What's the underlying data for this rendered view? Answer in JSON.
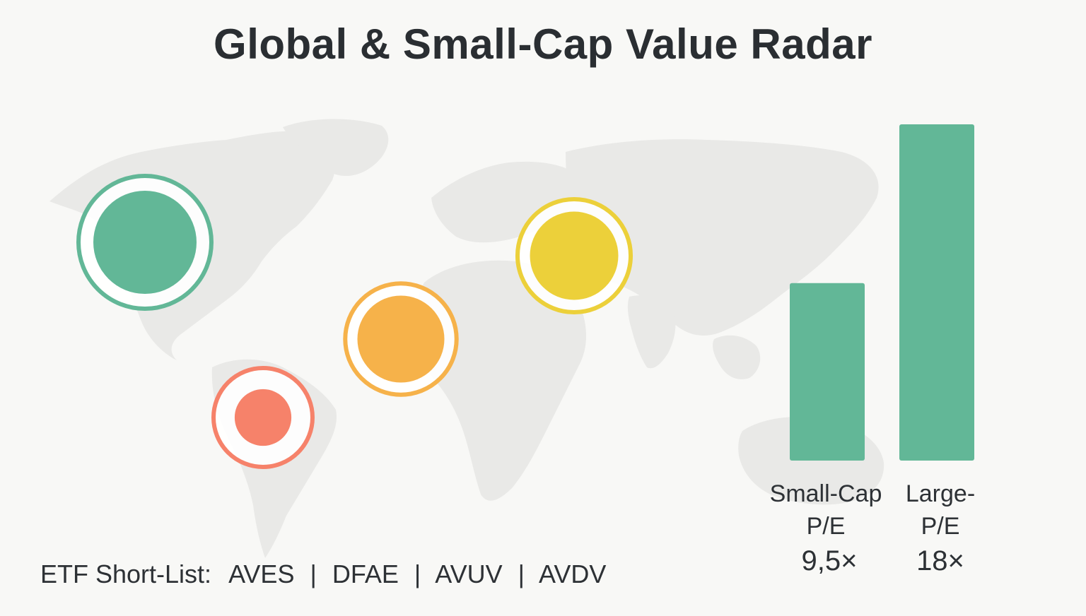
{
  "title": "Global & Small-Cap Value Radar",
  "colors": {
    "background": "#f8f8f6",
    "map": "#e8e8e6",
    "green": "#62b797",
    "orange": "#f6b24a",
    "coral": "#f6826a",
    "yellow": "#ecd03a"
  },
  "chart_data": [
    {
      "type": "bubble-map",
      "markers": [
        {
          "region": "North America",
          "color": "green",
          "relative_size": 1.0
        },
        {
          "region": "South America",
          "color": "coral",
          "relative_size": 0.45
        },
        {
          "region": "Africa / Atlantic",
          "color": "orange",
          "relative_size": 0.65
        },
        {
          "region": "Middle East / Asia",
          "color": "yellow",
          "relative_size": 0.68
        }
      ]
    },
    {
      "type": "bar",
      "categories": [
        "Small-Cap P/E",
        "Large-P/E"
      ],
      "label_lines": [
        [
          "Small-Cap",
          "P/E"
        ],
        [
          "Large-",
          "P/E"
        ]
      ],
      "values": [
        9.5,
        18
      ],
      "value_labels": [
        "9,5×",
        "18×"
      ],
      "color": "green",
      "ylim": [
        0,
        18
      ]
    }
  ],
  "etf": {
    "label": "ETF Short-List:",
    "tickers": [
      "AVES",
      "DFAE",
      "AVUV",
      "AVDV"
    ],
    "separator": "|"
  }
}
